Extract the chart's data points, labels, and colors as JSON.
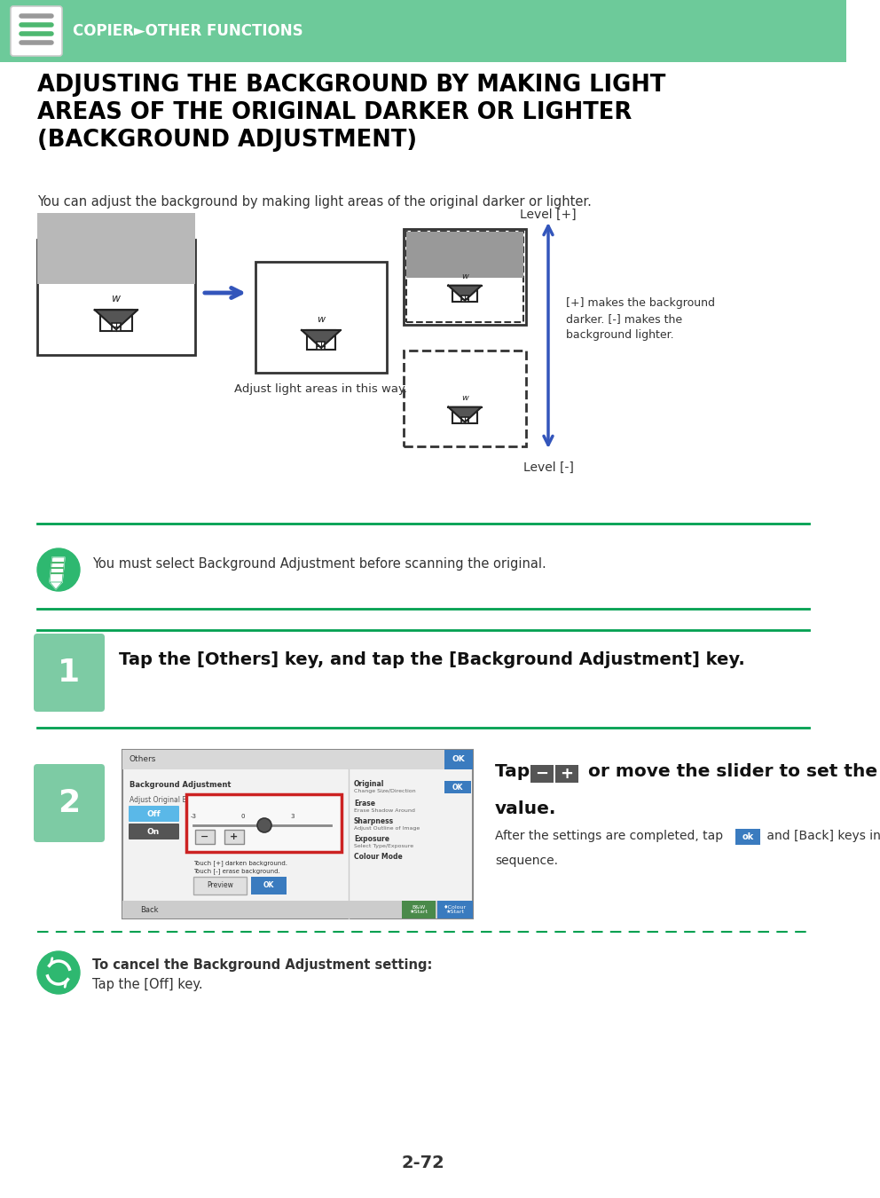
{
  "header_bg": "#6dca9a",
  "header_text": "COPIER►OTHER FUNCTIONS",
  "header_text_color": "#ffffff",
  "page_bg": "#ffffff",
  "title_text": "ADJUSTING THE BACKGROUND BY MAKING LIGHT\nAREAS OF THE ORIGINAL DARKER OR LIGHTER\n(BACKGROUND ADJUSTMENT)",
  "title_fontsize": 18.5,
  "title_color": "#000000",
  "subtitle_text": "You can adjust the background by making light areas of the original darker or lighter.",
  "subtitle_fontsize": 10.5,
  "green_line_color": "#00a050",
  "step_box_color": "#7dcba4",
  "step1_text": "Tap the [Others] key, and tap the [Background Adjustment] key.",
  "note_text": "You must select Background Adjustment before scanning the original.",
  "cancel_title": "To cancel the Background Adjustment setting:",
  "cancel_body": "Tap the [Off] key.",
  "level_plus": "Level [+]",
  "level_minus": "Level [-]",
  "arrow_note": "[+] makes the background\ndarker. [-] makes the\nbackground lighter.",
  "adjust_note": "Adjust light areas in this way.",
  "page_number": "2-72",
  "after_text": "After the settings are completed, tap",
  "after_text2": " and [Back] keys in",
  "after_text3": "sequence."
}
